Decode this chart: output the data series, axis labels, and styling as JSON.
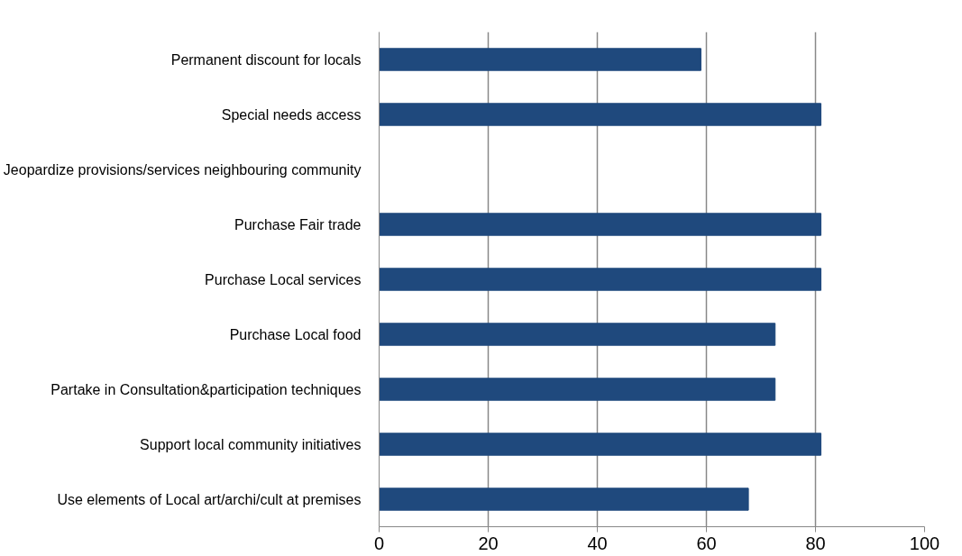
{
  "chart_data": {
    "type": "bar",
    "orientation": "horizontal",
    "categories": [
      "Permanent discount for locals",
      "Special needs access",
      "Jeopardize provisions/services neighbouring community",
      "Purchase Fair trade",
      "Purchase Local services",
      "Purchase Local food",
      "Partake in Consultation&participation techniques",
      "Support local community initiatives",
      "Use elements of Local art/archi/cult at premises"
    ],
    "values": [
      59,
      81,
      0,
      81,
      81,
      72.6,
      72.6,
      81,
      67.7
    ],
    "color": "#1f497d",
    "xlim": [
      0,
      100
    ],
    "xticks": [
      0,
      20,
      40,
      60,
      80,
      100
    ],
    "grid": "x"
  }
}
